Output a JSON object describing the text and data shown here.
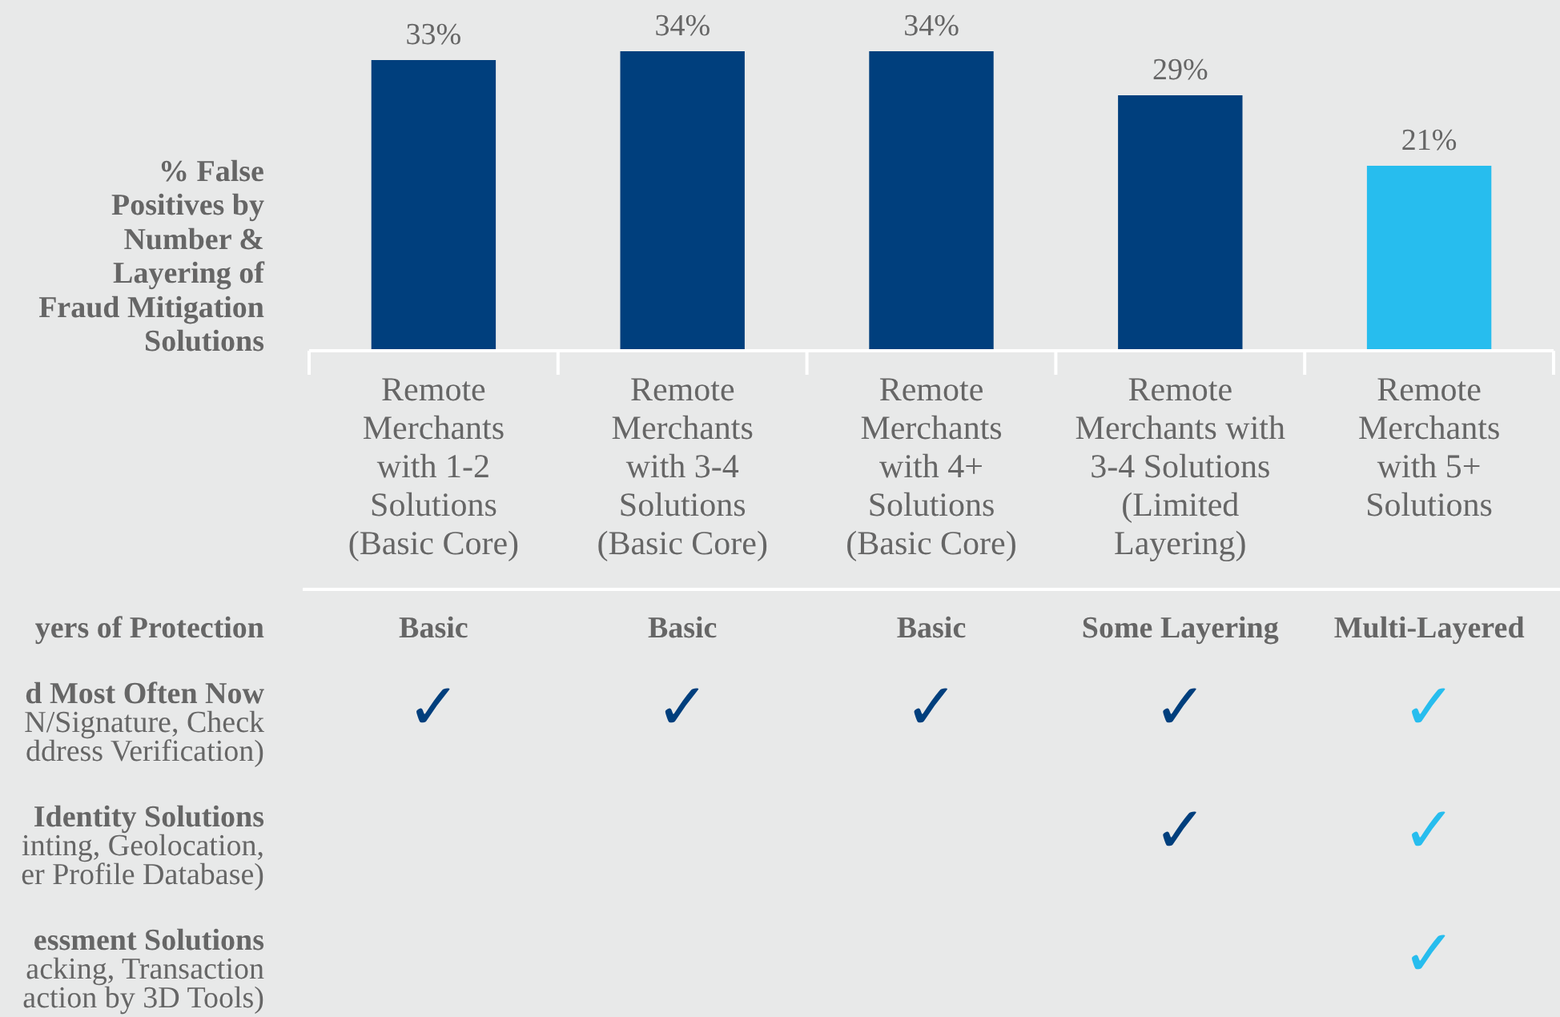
{
  "chart_data": {
    "type": "bar",
    "ylabel": "% False\nPositives by\nNumber &\nLayering of\nFraud Mitigation\nSolutions",
    "categories": [
      "Remote\nMerchants\nwith 1-2\nSolutions\n(Basic Core)",
      "Remote\nMerchants\nwith 3-4\nSolutions\n(Basic Core)",
      "Remote\nMerchants\nwith 4+\nSolutions\n(Basic Core)",
      "Remote\nMerchants with\n3-4 Solutions\n(Limited\nLayering)",
      "Remote\nMerchants\nwith 5+\nSolutions"
    ],
    "values": [
      33,
      34,
      34,
      29,
      21
    ],
    "value_labels": [
      "33%",
      "34%",
      "34%",
      "29%",
      "21%"
    ],
    "colors": [
      "#003f7d",
      "#003f7d",
      "#003f7d",
      "#003f7d",
      "#27bdee"
    ],
    "annotations": [
      "yers of Protection",
      "Basic",
      "Basic",
      "Basic",
      "Some Layering",
      "Multi-Layered",
      "d Most Often Now\nN/Signature, Check\nddress Verification)",
      "✓",
      "✓",
      "✓",
      "✓",
      "✓",
      "Identity Solutions\ninting, Geolocation,\ner Profile Database)",
      "✓",
      "✓",
      "essment Solutions\nacking, Transaction\naction by 3D Tools)",
      "✓"
    ]
  }
}
